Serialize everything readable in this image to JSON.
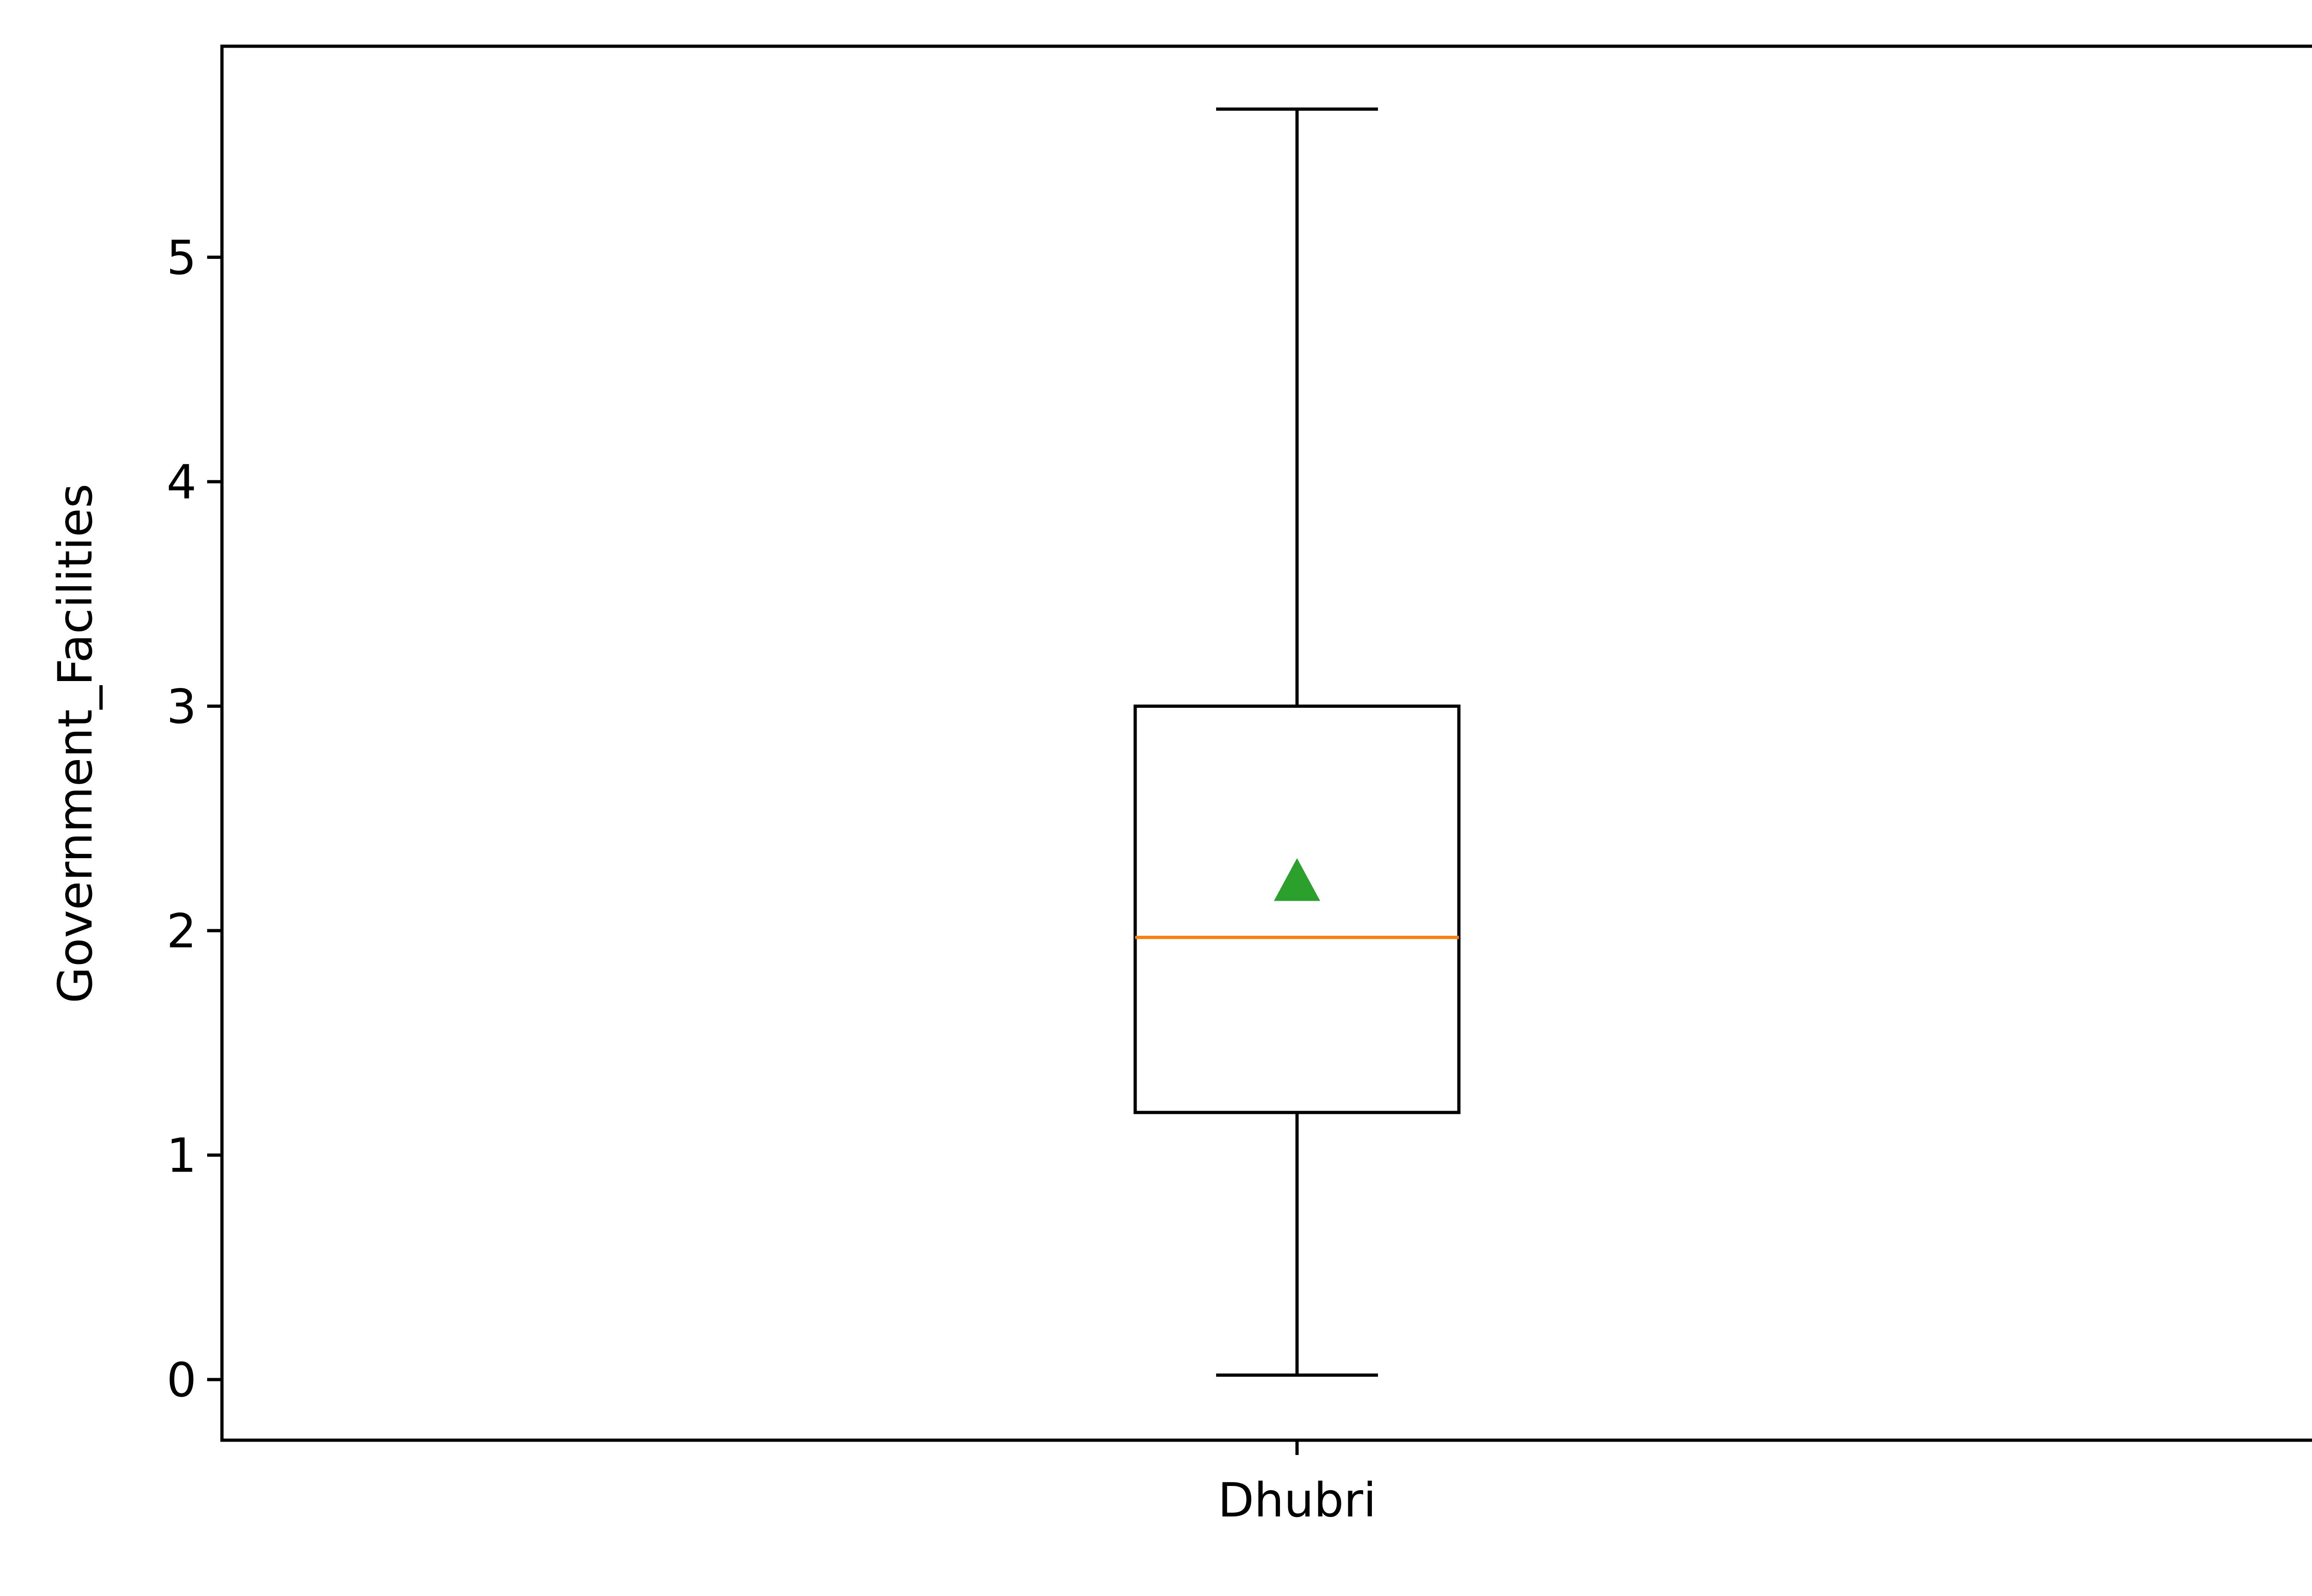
{
  "chart_data": {
    "type": "box",
    "title": "",
    "xlabel": "",
    "ylabel": "Government_Facilities",
    "categories": [
      "Dhubri"
    ],
    "boxes": [
      {
        "category": "Dhubri",
        "whisker_low": 0.02,
        "q1": 1.19,
        "median": 1.97,
        "mean": 2.22,
        "q3": 3.0,
        "whisker_high": 5.66
      }
    ],
    "ylim": [
      -0.27,
      5.94
    ],
    "yticks": [
      0,
      1,
      2,
      3,
      4,
      5
    ],
    "grid": false,
    "legend": "none"
  },
  "colors": {
    "box": "#000000",
    "median": "#ff7f0e",
    "mean_marker": "#2ca02c"
  }
}
